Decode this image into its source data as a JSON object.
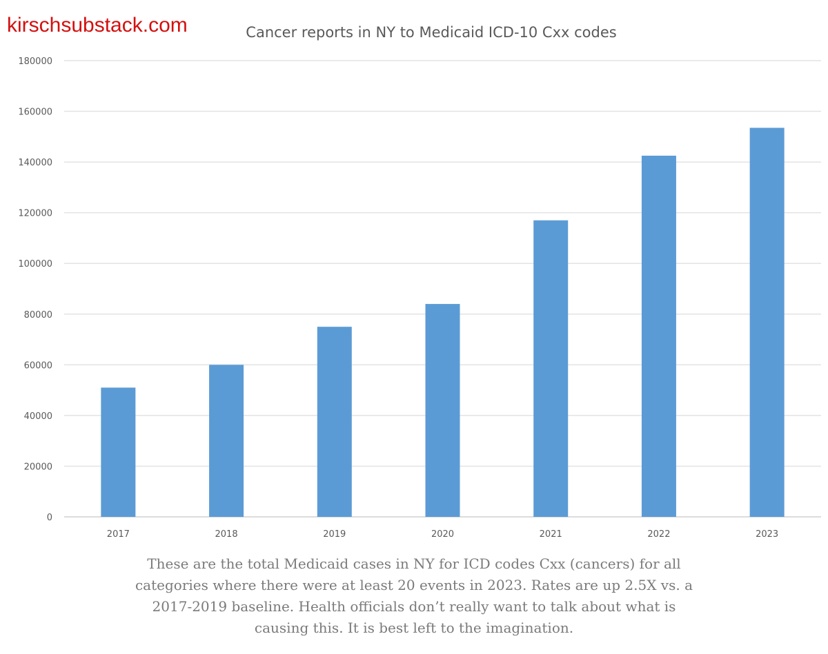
{
  "watermark": "kirschsubstack.com",
  "caption": "These are the total Medicaid cases in NY for ICD codes Cxx (cancers) for all categories where there were at least 20 events in 2023. Rates are up 2.5X vs. a 2017-2019 baseline. Health officials don’t really want to talk about what is causing this. It is best left to the imagination.",
  "colors": {
    "bar": "#5b9bd5",
    "grid": "#e3e3e3",
    "watermark": "#d40f0f",
    "text": "#595959"
  },
  "chart_data": {
    "type": "bar",
    "title": "Cancer reports in NY to Medicaid ICD-10 Cxx codes",
    "xlabel": "",
    "ylabel": "",
    "categories": [
      "2017",
      "2018",
      "2019",
      "2020",
      "2021",
      "2022",
      "2023"
    ],
    "values": [
      51000,
      60000,
      75000,
      84000,
      117000,
      142500,
      153500
    ],
    "ylim": [
      0,
      180000
    ],
    "yticks": [
      0,
      20000,
      40000,
      60000,
      80000,
      100000,
      120000,
      140000,
      160000,
      180000
    ],
    "ytick_labels": [
      "0",
      "20000",
      "40000",
      "60000",
      "80000",
      "100000",
      "120000",
      "140000",
      "160000",
      "180000"
    ],
    "grid": true,
    "legend": "none"
  }
}
